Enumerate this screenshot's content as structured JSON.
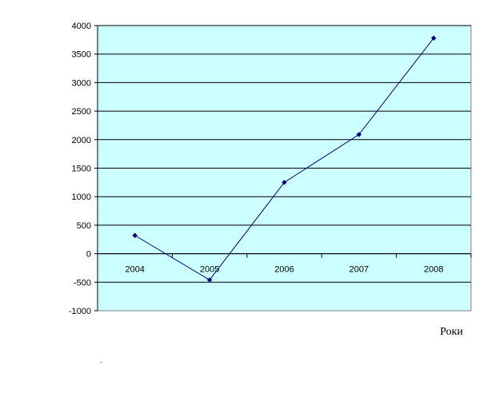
{
  "chart_data": {
    "type": "line",
    "categories": [
      "2004",
      "2005",
      "2006",
      "2007",
      "2008"
    ],
    "series": [
      {
        "values": [
          320,
          -460,
          1250,
          2090,
          3780
        ]
      }
    ],
    "title": "",
    "xlabel": "Роки",
    "ylabel": "",
    "ylim": [
      -1000,
      4000
    ],
    "yticks": [
      4000,
      3500,
      3000,
      2500,
      2000,
      1500,
      1000,
      500,
      0,
      -500,
      -1000
    ],
    "grid": true,
    "legend": "none",
    "colors": {
      "plot_background": "#ccffff",
      "line": "#000080",
      "marker": "#000080",
      "gridline": "#000000"
    }
  }
}
